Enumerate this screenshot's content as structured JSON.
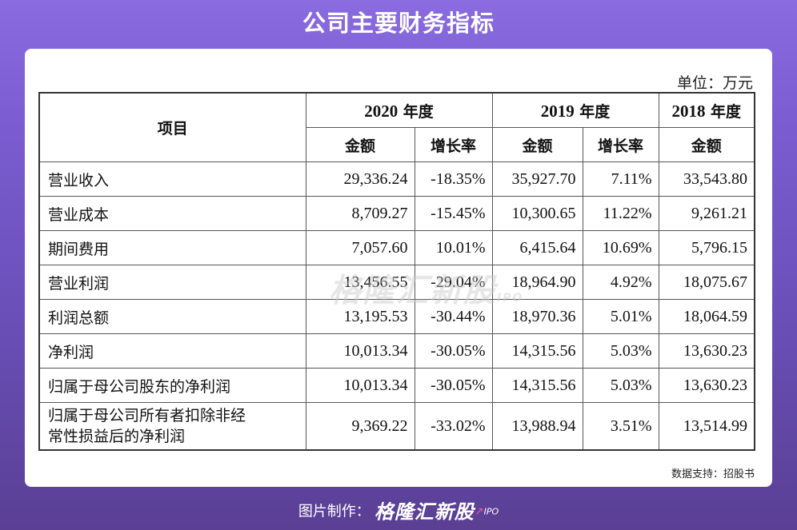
{
  "title": "公司主要财务指标",
  "unit": "单位：万元",
  "table": {
    "header_item": "项目",
    "years": [
      {
        "year": "2020",
        "suffix": " 年度"
      },
      {
        "year": "2019",
        "suffix": " 年度"
      },
      {
        "year": "2018",
        "suffix": " 年度"
      }
    ],
    "sub_amount": "金额",
    "sub_growth": "增长率",
    "rows": [
      {
        "label": "营业收入",
        "v2020": "29,336.24",
        "g2020": "-18.35%",
        "v2019": "35,927.70",
        "g2019": "7.11%",
        "v2018": "33,543.80"
      },
      {
        "label": "营业成本",
        "v2020": "8,709.27",
        "g2020": "-15.45%",
        "v2019": "10,300.65",
        "g2019": "11.22%",
        "v2018": "9,261.21"
      },
      {
        "label": "期间费用",
        "v2020": "7,057.60",
        "g2020": "10.01%",
        "v2019": "6,415.64",
        "g2019": "10.69%",
        "v2018": "5,796.15"
      },
      {
        "label": "营业利润",
        "v2020": "13,456.55",
        "g2020": "-29.04%",
        "v2019": "18,964.90",
        "g2019": "4.92%",
        "v2018": "18,075.67"
      },
      {
        "label": "利润总额",
        "v2020": "13,195.53",
        "g2020": "-30.44%",
        "v2019": "18,970.36",
        "g2019": "5.01%",
        "v2018": "18,064.59"
      },
      {
        "label": "净利润",
        "v2020": "10,013.34",
        "g2020": "-30.05%",
        "v2019": "14,315.56",
        "g2019": "5.03%",
        "v2018": "13,630.23"
      },
      {
        "label": "归属于母公司股东的净利润",
        "v2020": "10,013.34",
        "g2020": "-30.05%",
        "v2019": "14,315.56",
        "g2019": "5.03%",
        "v2018": "13,630.23"
      },
      {
        "label_line1": "归属于母公司所有者扣除非经",
        "label_line2": "常性损益后的净利润",
        "v2020": "9,369.22",
        "g2020": "-33.02%",
        "v2019": "13,988.94",
        "g2019": "3.51%",
        "v2018": "13,514.99"
      }
    ]
  },
  "source": "数据支持：招股书",
  "watermark": {
    "text": "格隆汇新股",
    "sub": "IPO"
  },
  "footer": {
    "label": "图片制作：",
    "brand": "格隆汇新股",
    "ipo": "IPO"
  }
}
